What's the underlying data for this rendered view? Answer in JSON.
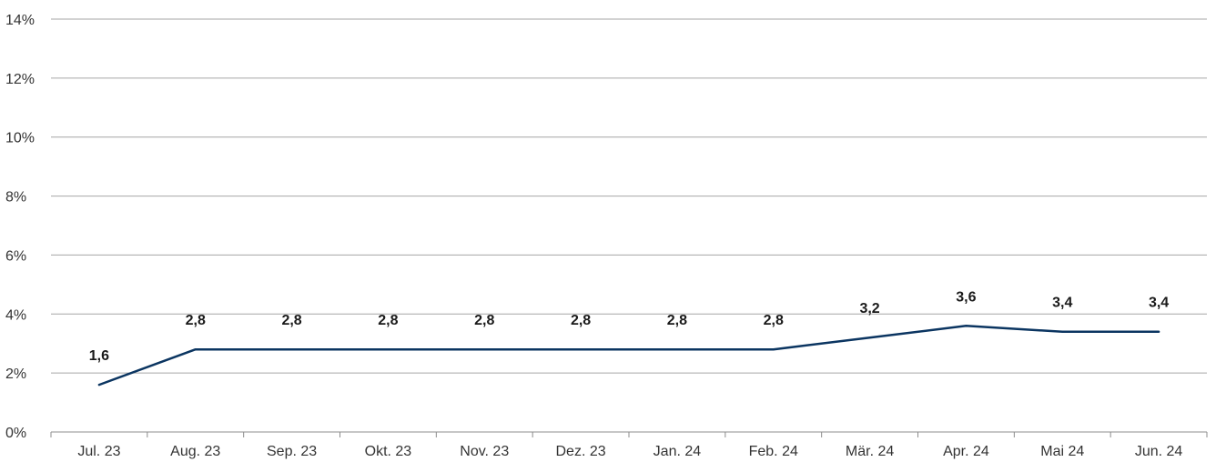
{
  "chart_data": {
    "type": "line",
    "title": "",
    "xlabel": "",
    "ylabel": "",
    "categories": [
      "Jul. 23",
      "Aug. 23",
      "Sep. 23",
      "Okt. 23",
      "Nov. 23",
      "Dez. 23",
      "Jan. 24",
      "Feb. 24",
      "Mär. 24",
      "Apr. 24",
      "Mai 24",
      "Jun. 24"
    ],
    "series": [
      {
        "values": [
          1.6,
          2.8,
          2.8,
          2.8,
          2.8,
          2.8,
          2.8,
          2.8,
          3.2,
          3.6,
          3.4,
          3.4
        ],
        "data_labels": [
          "1,6",
          "2,8",
          "2,8",
          "2,8",
          "2,8",
          "2,8",
          "2,8",
          "2,8",
          "3,2",
          "3,6",
          "3,4",
          "3,4"
        ],
        "color": "#0b3561"
      }
    ],
    "ylim": [
      0,
      14
    ],
    "y_ticks": [
      0,
      2,
      4,
      6,
      8,
      10,
      12,
      14
    ],
    "y_tick_labels": [
      "0%",
      "2%",
      "4%",
      "6%",
      "8%",
      "10%",
      "12%",
      "14%"
    ],
    "grid": true,
    "legend": "none"
  }
}
